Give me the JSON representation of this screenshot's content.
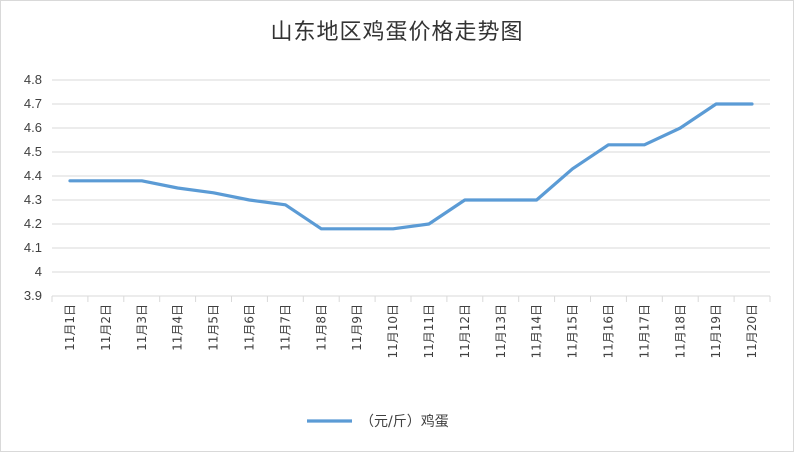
{
  "chart_data": {
    "type": "line",
    "title": "山东地区鸡蛋价格走势图",
    "categories": [
      "11月1日",
      "11月2日",
      "11月3日",
      "11月4日",
      "11月5日",
      "11月6日",
      "11月7日",
      "11月8日",
      "11月9日",
      "11月10日",
      "11月11日",
      "11月12日",
      "11月13日",
      "11月14日",
      "11月15日",
      "11月16日",
      "11月17日",
      "11月18日",
      "11月19日",
      "11月20日"
    ],
    "series": [
      {
        "name": "（元/斤）鸡蛋",
        "values": [
          4.38,
          4.38,
          4.38,
          4.35,
          4.33,
          4.3,
          4.28,
          4.18,
          4.18,
          4.18,
          4.2,
          4.3,
          4.3,
          4.3,
          4.43,
          4.53,
          4.53,
          4.6,
          4.7,
          4.7
        ],
        "color": "#5b9bd5"
      }
    ],
    "ylim": [
      3.9,
      4.8
    ],
    "yticks": [
      "3.9",
      "4",
      "4.1",
      "4.2",
      "4.3",
      "4.4",
      "4.5",
      "4.6",
      "4.7",
      "4.8"
    ],
    "xlabel": "",
    "ylabel": "",
    "grid": true,
    "legend": "bottom"
  }
}
